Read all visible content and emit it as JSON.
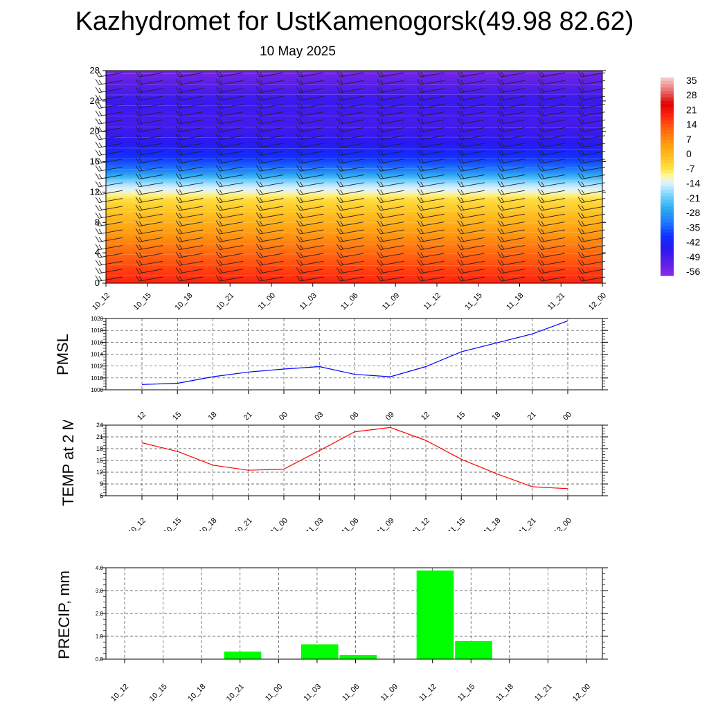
{
  "title": "Kazhydromet for UstKamenogorsk(49.98 82.62)",
  "subtitle": "10 May 2025",
  "time_labels": [
    "10_12",
    "10_15",
    "10_18",
    "10_21",
    "11_00",
    "11_03",
    "11_06",
    "11_09",
    "11_12",
    "11_15",
    "11_18",
    "11_21",
    "12_00"
  ],
  "chart_data": [
    {
      "type": "heatmap",
      "y_ticks": [
        0,
        4,
        8,
        12,
        16,
        20,
        24,
        28
      ],
      "ylim": [
        0,
        28
      ],
      "colorbar_labels": [
        "35",
        "28",
        "21",
        "14",
        "7",
        "0",
        "-7",
        "-14",
        "-21",
        "-28",
        "-35",
        "-42",
        "-49",
        "-56"
      ],
      "colorbar_range": [
        -63,
        42
      ],
      "color_stops": [
        {
          "v": -63,
          "c": "#8a2be2"
        },
        {
          "v": -56,
          "c": "#5a1ee8"
        },
        {
          "v": -49,
          "c": "#2a18f0"
        },
        {
          "v": -42,
          "c": "#1030ff"
        },
        {
          "v": -35,
          "c": "#1e78ff"
        },
        {
          "v": -28,
          "c": "#2aa8f0"
        },
        {
          "v": -21,
          "c": "#70d0ff"
        },
        {
          "v": -14,
          "c": "#dff2ff"
        },
        {
          "v": -10,
          "c": "#fff8a0"
        },
        {
          "v": -7,
          "c": "#ffe64a"
        },
        {
          "v": 0,
          "c": "#ffc020"
        },
        {
          "v": 7,
          "c": "#ff9a10"
        },
        {
          "v": 14,
          "c": "#ff6a10"
        },
        {
          "v": 21,
          "c": "#ff2a10"
        },
        {
          "v": 28,
          "c": "#e00000"
        },
        {
          "v": 35,
          "c": "#e87070"
        },
        {
          "v": 42,
          "c": "#f7d0d0"
        }
      ],
      "temperature_profile": [
        {
          "y": 0,
          "v": 22
        },
        {
          "y": 4,
          "v": 14
        },
        {
          "y": 8,
          "v": 3
        },
        {
          "y": 11,
          "v": -5
        },
        {
          "y": 12,
          "v": -12
        },
        {
          "y": 13,
          "v": -17
        },
        {
          "y": 15,
          "v": -35
        },
        {
          "y": 17,
          "v": -44
        },
        {
          "y": 19,
          "v": -50
        },
        {
          "y": 21,
          "v": -53
        },
        {
          "y": 24,
          "v": -51
        },
        {
          "y": 28,
          "v": -60
        }
      ]
    },
    {
      "type": "line",
      "ylabel": "PMSL",
      "color": "#0000ff",
      "ylim": [
        1008,
        1020
      ],
      "y_ticks": [
        1008,
        1010,
        1012,
        1014,
        1016,
        1018,
        1020
      ],
      "values": [
        1008.9,
        1009.1,
        1010.2,
        1011.0,
        1011.5,
        1011.9,
        1010.6,
        1010.2,
        1011.9,
        1014.4,
        1015.9,
        1017.4,
        1019.6
      ]
    },
    {
      "type": "line",
      "ylabel": "TEMP at 2 M",
      "color": "#ff0000",
      "ylim": [
        6,
        24
      ],
      "y_ticks": [
        6,
        9,
        12,
        15,
        18,
        21,
        24
      ],
      "values": [
        19.5,
        17.3,
        13.8,
        12.5,
        12.8,
        17.5,
        22.3,
        23.4,
        20.1,
        15.3,
        11.6,
        8.3,
        7.8
      ]
    },
    {
      "type": "bar",
      "ylabel": "PRECIP, mm",
      "color": "#00ff00",
      "ylim": [
        0,
        4
      ],
      "y_ticks": [
        "0.0",
        "1.0",
        "2.0",
        "3.0",
        "4.0"
      ],
      "values": [
        0,
        0,
        0,
        0.33,
        0,
        0.65,
        0.18,
        0,
        3.88,
        0.79,
        0,
        0,
        0
      ]
    }
  ]
}
